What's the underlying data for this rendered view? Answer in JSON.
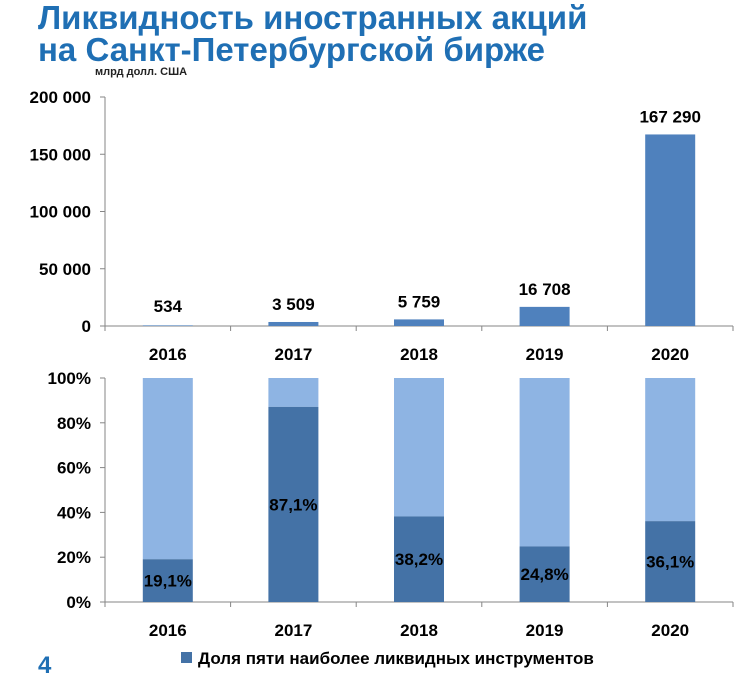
{
  "title_line1": "Ликвидность иностранных акций",
  "title_line2": "на Санкт-Петербургской бирже",
  "unit_label": "млрд долл. США",
  "page_number": "4",
  "colors": {
    "title": "#1f6fb4",
    "bar_primary": "#4f81bd",
    "bar_dark": "#4472a6",
    "bar_light": "#8eb4e3",
    "axis": "#868686"
  },
  "chart_data": [
    {
      "type": "bar",
      "categories": [
        "2016",
        "2017",
        "2018",
        "2019",
        "2020"
      ],
      "values": [
        534,
        3509,
        5759,
        16708,
        167290
      ],
      "data_labels": [
        "534",
        "3 509",
        "5 759",
        "16 708",
        "167 290"
      ],
      "ylim": [
        0,
        200000
      ],
      "y_ticks": [
        0,
        50000,
        100000,
        150000,
        200000
      ],
      "y_tick_labels": [
        "0",
        "50 000",
        "100 000",
        "150 000",
        "200 000"
      ],
      "title": "",
      "xlabel": "",
      "ylabel": "",
      "grid": false
    },
    {
      "type": "bar",
      "stacked": true,
      "categories": [
        "2016",
        "2017",
        "2018",
        "2019",
        "2020"
      ],
      "series": [
        {
          "name": "Доля пяти наиболее ликвидных инструментов",
          "values": [
            19.1,
            87.1,
            38.2,
            24.8,
            36.1
          ]
        },
        {
          "values": [
            80.9,
            12.9,
            61.8,
            75.2,
            63.9
          ]
        }
      ],
      "data_labels": [
        "19,1%",
        "87,1%",
        "38,2%",
        "24,8%",
        "36,1%"
      ],
      "ylim": [
        0,
        100
      ],
      "y_ticks": [
        0,
        20,
        40,
        60,
        80,
        100
      ],
      "y_tick_labels": [
        "0%",
        "20%",
        "40%",
        "60%",
        "80%",
        "100%"
      ],
      "legend": "bottom",
      "legend_label": "Доля пяти наиболее ликвидных инструментов",
      "title": "",
      "xlabel": "",
      "ylabel": "",
      "grid": false
    }
  ]
}
